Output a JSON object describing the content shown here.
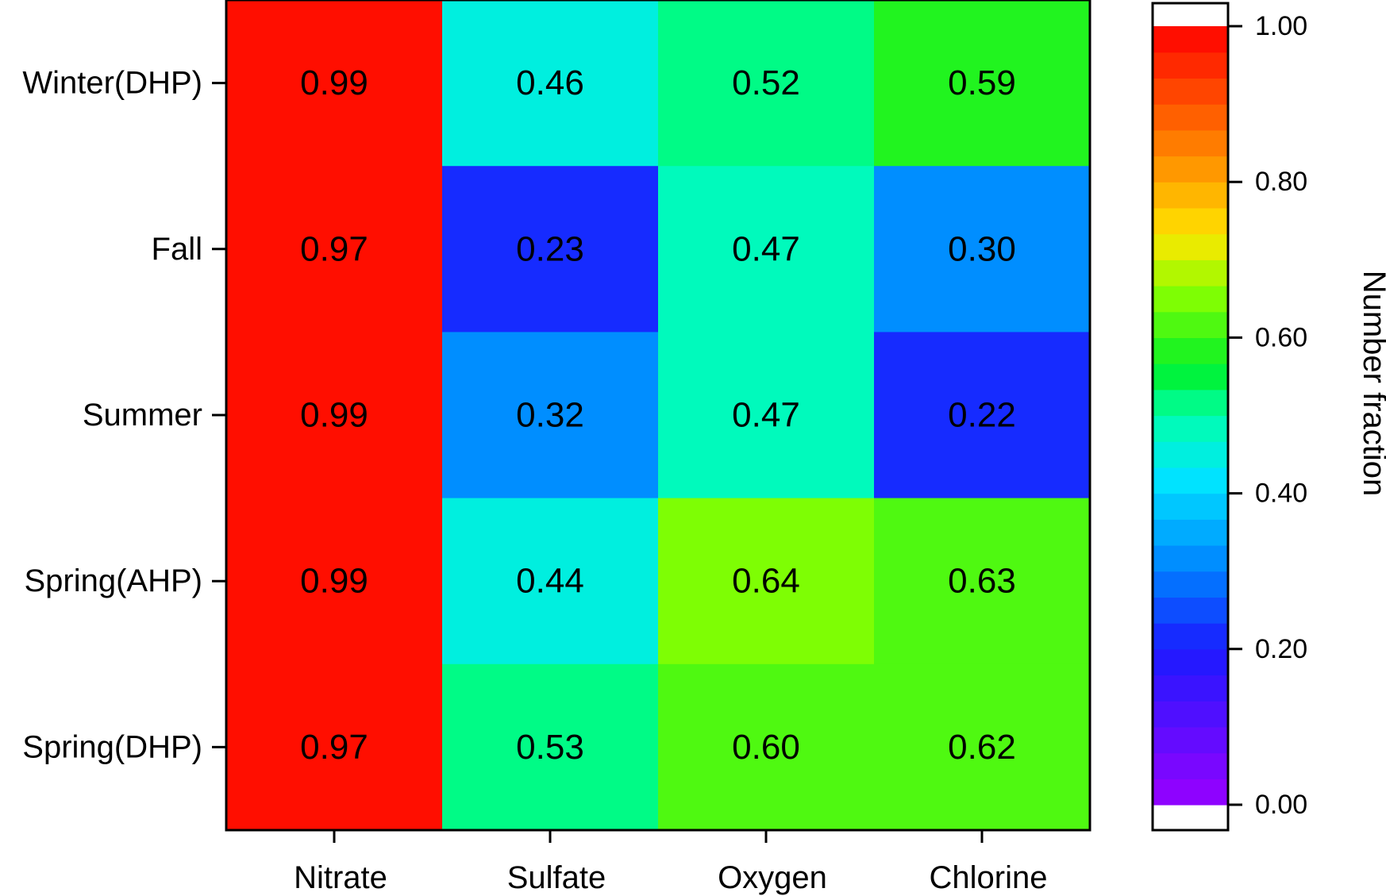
{
  "chart_data": {
    "type": "heatmap",
    "title": "",
    "xlabel": "",
    "ylabel": "",
    "categories": [
      "Nitrate",
      "Sulfate",
      "Oxygen",
      "Chlorine"
    ],
    "rows": [
      "Winter(DHP)",
      "Fall",
      "Summer",
      "Spring(AHP)",
      "Spring(DHP)"
    ],
    "values": [
      [
        0.99,
        0.46,
        0.52,
        0.59
      ],
      [
        0.97,
        0.23,
        0.47,
        0.3
      ],
      [
        0.99,
        0.32,
        0.47,
        0.22
      ],
      [
        0.99,
        0.44,
        0.64,
        0.63
      ],
      [
        0.97,
        0.53,
        0.6,
        0.62
      ]
    ],
    "value_labels": [
      [
        "0.99",
        "0.46",
        "0.52",
        "0.59"
      ],
      [
        "0.97",
        "0.23",
        "0.47",
        "0.30"
      ],
      [
        "0.99",
        "0.32",
        "0.47",
        "0.22"
      ],
      [
        "0.99",
        "0.44",
        "0.64",
        "0.63"
      ],
      [
        "0.97",
        "0.53",
        "0.60",
        "0.62"
      ]
    ],
    "colorbar": {
      "label": "Number fraction",
      "range": [
        0,
        1
      ],
      "ticks": [
        0,
        0.2,
        0.4,
        0.6,
        0.8,
        1.0
      ],
      "tick_labels": [
        "0.00",
        "0.20",
        "0.40",
        "0.60",
        "0.80",
        "1.00"
      ],
      "n_bands": 30,
      "colormap": "rainbow: violet to blue to cyan to green to yellow to orange to red"
    },
    "grid": false,
    "legend": "colorbar-right"
  }
}
